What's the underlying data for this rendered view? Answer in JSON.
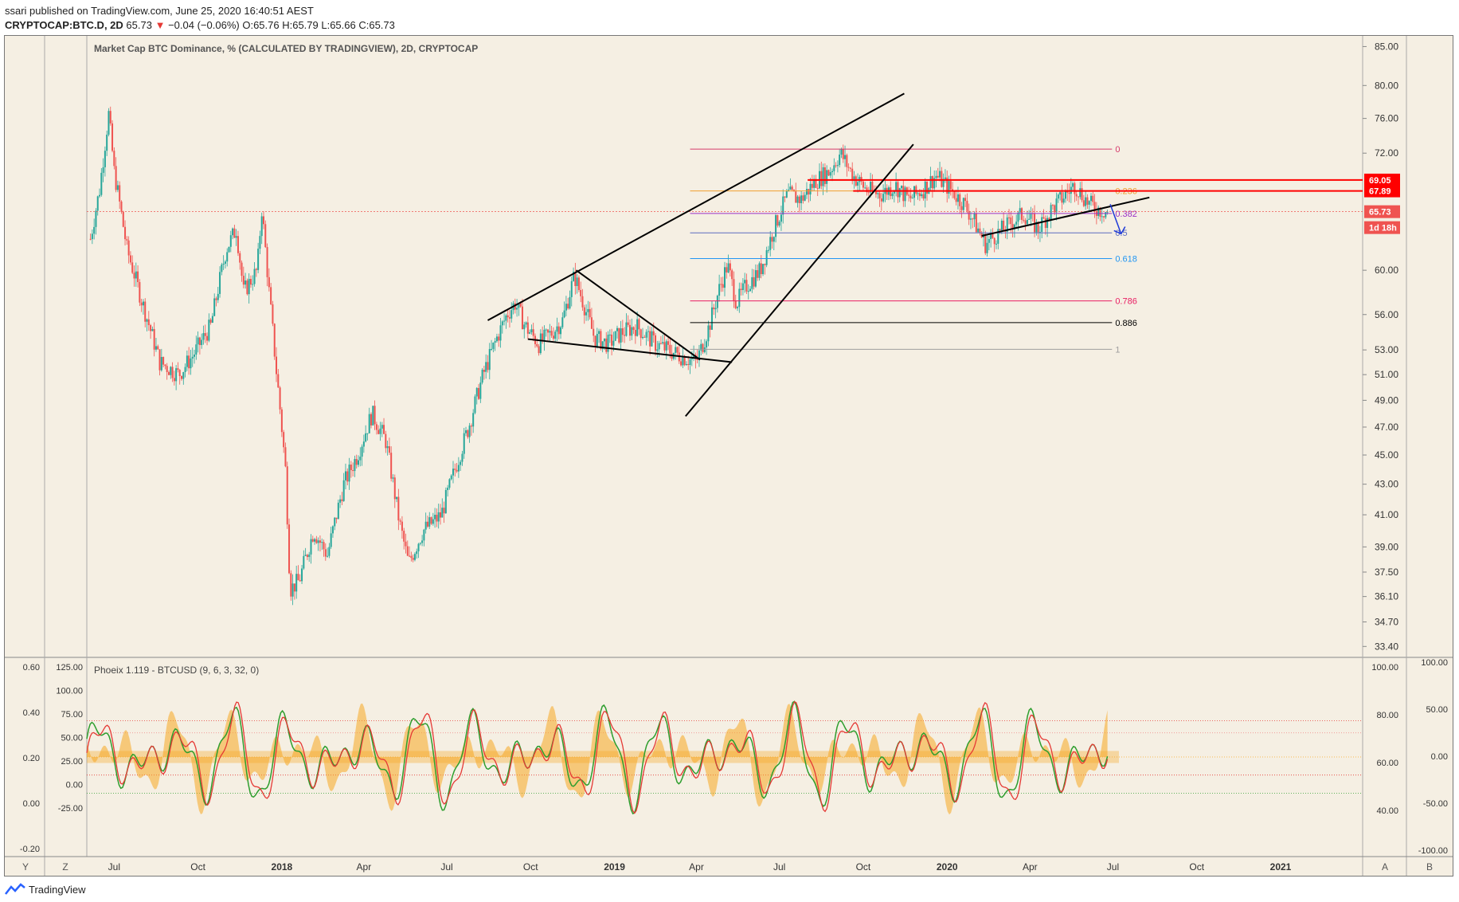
{
  "header": {
    "publish_line": "ssari published on TradingView.com, June 25, 2020 16:40:51 AEST",
    "symbol": "CRYPTOCAP:BTC.D, 2D",
    "last": "65.73",
    "change_arrow": "▼",
    "change": "−0.04 (−0.06%)",
    "ohlc": "O:65.76 H:65.79 L:65.66 C:65.73"
  },
  "main_pane": {
    "title": "Market Cap BTC Dominance, % (CALCULATED BY TRADINGVIEW), 2D, CRYPTOCAP",
    "y_ticks": [
      "85.00",
      "80.00",
      "76.00",
      "72.00",
      "60.00",
      "56.00",
      "53.00",
      "51.00",
      "49.00",
      "47.00",
      "45.00",
      "43.00",
      "41.00",
      "39.00",
      "37.50",
      "36.10",
      "34.70",
      "33.40"
    ],
    "price_tags": [
      {
        "label": "69.05",
        "color": "#ff0000"
      },
      {
        "label": "67.89",
        "color": "#ff0000"
      },
      {
        "label": "65.73",
        "color": "#ef5350"
      },
      {
        "label": "1d 18h",
        "color": "#ef5350"
      }
    ],
    "fib_levels": [
      {
        "label": "0",
        "value": 72.45,
        "color": "#d63b6c"
      },
      {
        "label": "0.236",
        "value": 67.89,
        "color": "#f0a030"
      },
      {
        "label": "0.382",
        "value": 65.55,
        "color": "#9b30c8"
      },
      {
        "label": "0.5",
        "value": 63.6,
        "color": "#5c6bc0"
      },
      {
        "label": "0.618",
        "value": 61.1,
        "color": "#2196f3"
      },
      {
        "label": "0.786",
        "value": 57.2,
        "color": "#e91e63"
      },
      {
        "label": "0.886",
        "value": 55.3,
        "color": "#000000"
      },
      {
        "label": "1",
        "value": 53.05,
        "color": "#9e9e9e"
      }
    ]
  },
  "indicator_pane": {
    "title": "Phoeix 1.119 - BTCUSD (9, 6, 3, 32, 0)",
    "left_ticks_a": [
      "0.60",
      "0.40",
      "0.20",
      "0.00",
      "-0.20"
    ],
    "left_ticks_b": [
      "125.00",
      "100.00",
      "75.00",
      "50.00",
      "25.00",
      "0.00",
      "-25.00"
    ],
    "right_ticks_a": [
      "100.00",
      "80.00",
      "60.00",
      "40.00"
    ],
    "right_ticks_b": [
      "100.00",
      "50.00",
      "0.00",
      "-50.00",
      "-100.00"
    ]
  },
  "time_axis": {
    "labels": [
      "Jul",
      "Oct",
      "2018",
      "Apr",
      "Jul",
      "Oct",
      "2019",
      "Apr",
      "Jul",
      "Oct",
      "2020",
      "Apr",
      "Jul",
      "Oct",
      "2021"
    ],
    "bold": [
      "2018",
      "2019",
      "2020",
      "2021"
    ]
  },
  "corner_buttons": {
    "y": "Y",
    "z": "Z",
    "a": "A",
    "b": "B"
  },
  "footer": {
    "brand": "TradingView"
  },
  "colors": {
    "up": "#26a69a",
    "down": "#ef5350",
    "background": "#f5efe3",
    "trendline": "#000000",
    "arrow": "#1e3ad8"
  },
  "chart_data": {
    "type": "candlestick",
    "title": "Market Cap BTC Dominance, % (CALCULATED BY TRADINGVIEW), 2D, CRYPTOCAP",
    "x_range": [
      "2017-06-01",
      "2021-04-01"
    ],
    "y_scale": "log",
    "y_range": [
      33.0,
      86.0
    ],
    "close_path": [
      [
        "2017-06-05",
        63.0
      ],
      [
        "2017-06-15",
        68.0
      ],
      [
        "2017-06-25",
        76.5
      ],
      [
        "2017-07-01",
        70.0
      ],
      [
        "2017-07-15",
        62.0
      ],
      [
        "2017-08-01",
        57.0
      ],
      [
        "2017-08-20",
        52.0
      ],
      [
        "2017-09-10",
        51.0
      ],
      [
        "2017-09-25",
        52.5
      ],
      [
        "2017-10-15",
        55.0
      ],
      [
        "2017-11-01",
        62.0
      ],
      [
        "2017-11-12",
        64.0
      ],
      [
        "2017-11-20",
        58.0
      ],
      [
        "2017-12-05",
        60.0
      ],
      [
        "2017-12-10",
        66.0
      ],
      [
        "2017-12-18",
        58.0
      ],
      [
        "2017-12-25",
        52.0
      ],
      [
        "2018-01-05",
        44.0
      ],
      [
        "2018-01-10",
        36.5
      ],
      [
        "2018-01-20",
        37.0
      ],
      [
        "2018-02-05",
        40.0
      ],
      [
        "2018-02-20",
        38.5
      ],
      [
        "2018-03-10",
        43.0
      ],
      [
        "2018-03-25",
        45.0
      ],
      [
        "2018-04-10",
        48.0
      ],
      [
        "2018-04-25",
        46.0
      ],
      [
        "2018-05-10",
        40.5
      ],
      [
        "2018-05-20",
        38.0
      ],
      [
        "2018-06-05",
        40.0
      ],
      [
        "2018-06-25",
        41.0
      ],
      [
        "2018-07-10",
        44.0
      ],
      [
        "2018-07-25",
        47.0
      ],
      [
        "2018-08-10",
        51.0
      ],
      [
        "2018-08-25",
        54.0
      ],
      [
        "2018-09-05",
        56.0
      ],
      [
        "2018-09-14",
        57.0
      ],
      [
        "2018-09-25",
        55.0
      ],
      [
        "2018-10-10",
        53.5
      ],
      [
        "2018-10-25",
        54.5
      ],
      [
        "2018-11-05",
        55.5
      ],
      [
        "2018-11-18",
        59.5
      ],
      [
        "2018-11-28",
        57.0
      ],
      [
        "2018-12-10",
        54.0
      ],
      [
        "2018-12-25",
        53.5
      ],
      [
        "2019-01-10",
        54.5
      ],
      [
        "2019-01-25",
        55.0
      ],
      [
        "2019-02-15",
        53.5
      ],
      [
        "2019-03-01",
        53.0
      ],
      [
        "2019-03-15",
        52.5
      ],
      [
        "2019-04-01",
        52.0
      ],
      [
        "2019-04-15",
        55.0
      ],
      [
        "2019-04-25",
        58.0
      ],
      [
        "2019-05-05",
        60.5
      ],
      [
        "2019-05-15",
        57.0
      ],
      [
        "2019-05-25",
        58.5
      ],
      [
        "2019-06-10",
        60.0
      ],
      [
        "2019-06-25",
        64.0
      ],
      [
        "2019-07-10",
        67.5
      ],
      [
        "2019-07-25",
        67.0
      ],
      [
        "2019-08-10",
        69.0
      ],
      [
        "2019-08-25",
        70.0
      ],
      [
        "2019-09-06",
        72.0
      ],
      [
        "2019-09-20",
        69.5
      ],
      [
        "2019-10-05",
        68.0
      ],
      [
        "2019-10-20",
        67.5
      ],
      [
        "2019-11-05",
        68.5
      ],
      [
        "2019-11-20",
        67.0
      ],
      [
        "2019-12-05",
        68.0
      ],
      [
        "2019-12-20",
        69.5
      ],
      [
        "2020-01-05",
        68.0
      ],
      [
        "2020-01-20",
        66.5
      ],
      [
        "2020-02-01",
        64.5
      ],
      [
        "2020-02-12",
        62.5
      ],
      [
        "2020-02-25",
        63.5
      ],
      [
        "2020-03-10",
        64.5
      ],
      [
        "2020-03-25",
        65.5
      ],
      [
        "2020-04-10",
        64.0
      ],
      [
        "2020-04-25",
        66.0
      ],
      [
        "2020-05-10",
        67.5
      ],
      [
        "2020-05-20",
        68.5
      ],
      [
        "2020-06-05",
        66.5
      ],
      [
        "2020-06-15",
        66.0
      ],
      [
        "2020-06-25",
        65.73
      ]
    ],
    "trendlines": [
      {
        "from": [
          "2018-08-15",
          55.5
        ],
        "to": [
          "2019-11-15",
          79.0
        ]
      },
      {
        "from": [
          "2019-03-20",
          47.8
        ],
        "to": [
          "2019-11-25",
          73.0
        ]
      },
      {
        "from": [
          "2018-11-20",
          60.0
        ],
        "to": [
          "2019-04-05",
          52.2
        ]
      },
      {
        "from": [
          "2018-09-28",
          53.9
        ],
        "to": [
          "2019-05-10",
          52.0
        ]
      },
      {
        "from": [
          "2020-02-08",
          63.3
        ],
        "to": [
          "2020-08-10",
          67.2
        ]
      }
    ],
    "resistance_lines": [
      69.05,
      67.89
    ],
    "last_price_line": 65.73,
    "arrow": {
      "from": [
        "2020-06-28",
        66.5
      ],
      "to": [
        "2020-07-10",
        63.5
      ]
    },
    "oscillator": {
      "series": [
        {
          "color": "#2e9e2e"
        },
        {
          "color": "#e53935"
        },
        {
          "color": "#f6a823"
        }
      ],
      "levels": [
        80,
        70,
        50,
        35,
        20
      ],
      "range": [
        -30,
        130
      ]
    }
  }
}
